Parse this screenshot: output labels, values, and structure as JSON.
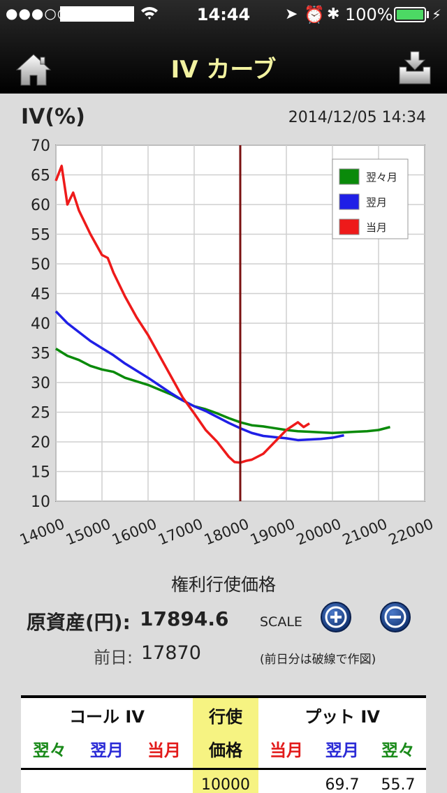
{
  "status_bar": {
    "signal": "●●●○○",
    "time": "14:44",
    "battery_pct": "100%",
    "battery_level": 1.0
  },
  "nav": {
    "title": "IV カーブ",
    "home_icon": "home-icon",
    "download_icon": "download-tray-icon"
  },
  "header": {
    "iv_label": "IV(%)",
    "timestamp": "2014/12/05 14:34"
  },
  "chart_data": {
    "type": "line",
    "xlabel": "権利行使価格",
    "ylabel": "IV(%)",
    "xlim": [
      14000,
      22000
    ],
    "ylim": [
      10,
      70
    ],
    "x_ticks": [
      14000,
      15000,
      16000,
      17000,
      18000,
      19000,
      20000,
      21000,
      22000
    ],
    "y_ticks": [
      10,
      15,
      20,
      25,
      30,
      35,
      40,
      45,
      50,
      55,
      60,
      65,
      70
    ],
    "grid": true,
    "legend_position": "top-right",
    "vertical_marker_x": 18000,
    "series": [
      {
        "name": "翌々月",
        "color": "#0a8a0a",
        "x": [
          14000,
          14250,
          14500,
          14750,
          15000,
          15250,
          15500,
          15750,
          16000,
          16250,
          16500,
          16750,
          17000,
          17250,
          17500,
          17750,
          18000,
          18250,
          18500,
          18750,
          19000,
          19250,
          19500,
          19750,
          20000,
          20250,
          20500,
          20750,
          21000,
          21250
        ],
        "y": [
          35.7,
          34.5,
          33.8,
          32.8,
          32.2,
          31.8,
          30.8,
          30.2,
          29.6,
          28.8,
          28.0,
          27.0,
          26.0,
          25.5,
          24.8,
          24.0,
          23.3,
          22.8,
          22.6,
          22.3,
          22.0,
          21.8,
          21.7,
          21.6,
          21.5,
          21.6,
          21.7,
          21.8,
          22.0,
          22.5
        ]
      },
      {
        "name": "翌月",
        "color": "#1f1fe6",
        "x": [
          14000,
          14250,
          14500,
          14750,
          15000,
          15250,
          15500,
          15750,
          16000,
          16250,
          16500,
          16750,
          17000,
          17250,
          17500,
          17750,
          18000,
          18250,
          18500,
          18750,
          19000,
          19250,
          19500,
          19750,
          20000,
          20250
        ],
        "y": [
          42.0,
          40.0,
          38.5,
          37.0,
          35.8,
          34.6,
          33.2,
          32.0,
          30.8,
          29.5,
          28.2,
          27.0,
          26.0,
          25.2,
          24.2,
          23.2,
          22.3,
          21.5,
          21.0,
          20.8,
          20.6,
          20.3,
          20.4,
          20.5,
          20.7,
          21.1
        ]
      },
      {
        "name": "当月",
        "color": "#ee1a1a",
        "x": [
          14000,
          14125,
          14250,
          14375,
          14500,
          14750,
          15000,
          15125,
          15250,
          15500,
          15750,
          16000,
          16250,
          16500,
          16750,
          17000,
          17250,
          17500,
          17750,
          17875,
          18000,
          18125,
          18250,
          18500,
          18750,
          19000,
          19250,
          19375,
          19500
        ],
        "y": [
          64.0,
          66.5,
          60.0,
          62.0,
          59.0,
          55.0,
          51.5,
          51.0,
          48.5,
          44.5,
          41.0,
          38.0,
          34.5,
          31.0,
          27.5,
          24.8,
          22.0,
          20.0,
          17.5,
          16.6,
          16.5,
          16.8,
          17.0,
          18.0,
          20.0,
          22.0,
          23.3,
          22.5,
          23.1
        ]
      }
    ]
  },
  "underlying": {
    "label": "原資産(円):",
    "value": "17894.6",
    "prev_label": "前日:",
    "prev_value": "17870",
    "scale_label": "SCALE",
    "zoom_in_icon": "plus-circle-icon",
    "zoom_out_icon": "minus-circle-icon",
    "note": "(前日分は破線で作図)"
  },
  "table": {
    "call_header": "コール IV",
    "strike_header_top": "行使",
    "strike_header_bottom": "価格",
    "put_header": "プット IV",
    "call_cols": [
      "翌々",
      "翌月",
      "当月"
    ],
    "put_cols": [
      "当月",
      "翌月",
      "翌々"
    ],
    "rows": [
      {
        "strike": "10000",
        "put_next": "69.7",
        "put_after": "55.7"
      }
    ]
  },
  "colors": {
    "green": "#1a8a1a",
    "blue": "#2b2bd6",
    "red": "#e21a1a",
    "strike_bg": "#f6f382"
  }
}
